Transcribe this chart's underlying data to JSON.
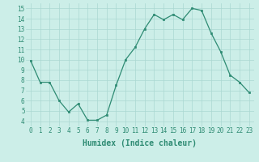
{
  "x": [
    0,
    1,
    2,
    3,
    4,
    5,
    6,
    7,
    8,
    9,
    10,
    11,
    12,
    13,
    14,
    15,
    16,
    17,
    18,
    19,
    20,
    21,
    22,
    23
  ],
  "y": [
    9.9,
    7.8,
    7.8,
    6.0,
    4.9,
    5.7,
    4.1,
    4.1,
    4.6,
    7.5,
    10.0,
    11.2,
    13.0,
    14.4,
    13.9,
    14.4,
    13.9,
    15.0,
    14.8,
    12.6,
    10.8,
    8.5,
    7.8,
    6.8
  ],
  "xlabel": "Humidex (Indice chaleur)",
  "ylim_min": 3.5,
  "ylim_max": 15.5,
  "yticks": [
    4,
    5,
    6,
    7,
    8,
    9,
    10,
    11,
    12,
    13,
    14,
    15
  ],
  "xticks": [
    0,
    1,
    2,
    3,
    4,
    5,
    6,
    7,
    8,
    9,
    10,
    11,
    12,
    13,
    14,
    15,
    16,
    17,
    18,
    19,
    20,
    21,
    22,
    23
  ],
  "line_color": "#2e8b73",
  "marker_color": "#2e8b73",
  "bg_color": "#cceee8",
  "grid_color": "#aad8d2",
  "xlabel_color": "#2e8b73",
  "tick_color": "#2e8b73",
  "tick_fontsize": 5.5,
  "xlabel_fontsize": 7.0,
  "figwidth": 3.2,
  "figheight": 2.0,
  "dpi": 100
}
